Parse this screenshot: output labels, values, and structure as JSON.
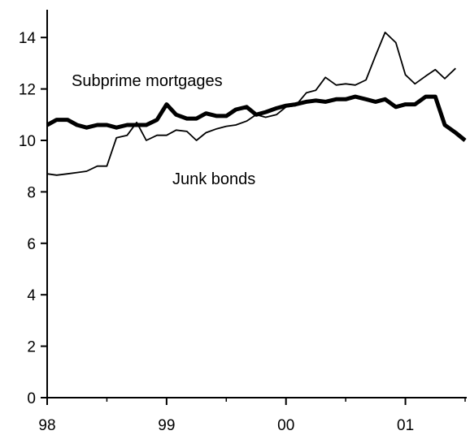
{
  "chart_data": {
    "type": "line",
    "title": "",
    "xlabel": "",
    "ylabel": "",
    "xlim": [
      1998.0,
      2001.5
    ],
    "ylim": [
      0,
      15
    ],
    "x_ticks": [
      {
        "value": 1998,
        "label": "98"
      },
      {
        "value": 1999,
        "label": "99"
      },
      {
        "value": 2000,
        "label": "00"
      },
      {
        "value": 2001,
        "label": "01"
      }
    ],
    "y_ticks": [
      0,
      2,
      4,
      6,
      8,
      10,
      12,
      14
    ],
    "grid": false,
    "legend": "none",
    "annotations": [
      {
        "text": "Subprime mortgages",
        "series": "Subprime mortgages"
      },
      {
        "text": "Junk bonds",
        "series": "Junk bonds"
      }
    ],
    "series": [
      {
        "name": "Subprime mortgages",
        "line_weight": "thick",
        "color": "#000000",
        "points": [
          [
            1998.0,
            10.6
          ],
          [
            1998.08,
            10.8
          ],
          [
            1998.17,
            10.8
          ],
          [
            1998.25,
            10.6
          ],
          [
            1998.33,
            10.5
          ],
          [
            1998.42,
            10.6
          ],
          [
            1998.5,
            10.6
          ],
          [
            1998.58,
            10.5
          ],
          [
            1998.67,
            10.6
          ],
          [
            1998.75,
            10.6
          ],
          [
            1998.83,
            10.6
          ],
          [
            1998.92,
            10.8
          ],
          [
            1999.0,
            11.4
          ],
          [
            1999.08,
            11.0
          ],
          [
            1999.17,
            10.85
          ],
          [
            1999.25,
            10.85
          ],
          [
            1999.33,
            11.05
          ],
          [
            1999.42,
            10.95
          ],
          [
            1999.5,
            10.95
          ],
          [
            1999.58,
            11.2
          ],
          [
            1999.67,
            11.3
          ],
          [
            1999.75,
            11.0
          ],
          [
            1999.83,
            11.1
          ],
          [
            1999.92,
            11.25
          ],
          [
            2000.0,
            11.35
          ],
          [
            2000.08,
            11.4
          ],
          [
            2000.17,
            11.5
          ],
          [
            2000.25,
            11.55
          ],
          [
            2000.33,
            11.5
          ],
          [
            2000.42,
            11.6
          ],
          [
            2000.5,
            11.6
          ],
          [
            2000.58,
            11.7
          ],
          [
            2000.67,
            11.6
          ],
          [
            2000.75,
            11.5
          ],
          [
            2000.83,
            11.6
          ],
          [
            2000.92,
            11.3
          ],
          [
            2001.0,
            11.4
          ],
          [
            2001.08,
            11.4
          ],
          [
            2001.17,
            11.7
          ],
          [
            2001.25,
            11.7
          ],
          [
            2001.33,
            10.6
          ],
          [
            2001.42,
            10.3
          ],
          [
            2001.5,
            10.0
          ]
        ]
      },
      {
        "name": "Junk bonds",
        "line_weight": "thin",
        "color": "#000000",
        "points": [
          [
            1998.0,
            8.7
          ],
          [
            1998.08,
            8.65
          ],
          [
            1998.17,
            8.7
          ],
          [
            1998.25,
            8.75
          ],
          [
            1998.33,
            8.8
          ],
          [
            1998.42,
            9.0
          ],
          [
            1998.5,
            9.0
          ],
          [
            1998.58,
            10.1
          ],
          [
            1998.67,
            10.2
          ],
          [
            1998.75,
            10.7
          ],
          [
            1998.83,
            10.0
          ],
          [
            1998.92,
            10.2
          ],
          [
            1999.0,
            10.2
          ],
          [
            1999.08,
            10.4
          ],
          [
            1999.17,
            10.35
          ],
          [
            1999.25,
            10.0
          ],
          [
            1999.33,
            10.3
          ],
          [
            1999.42,
            10.45
          ],
          [
            1999.5,
            10.55
          ],
          [
            1999.58,
            10.6
          ],
          [
            1999.67,
            10.75
          ],
          [
            1999.75,
            11.0
          ],
          [
            1999.83,
            10.9
          ],
          [
            1999.92,
            11.0
          ],
          [
            2000.0,
            11.3
          ],
          [
            2000.08,
            11.35
          ],
          [
            2000.17,
            11.85
          ],
          [
            2000.25,
            11.95
          ],
          [
            2000.33,
            12.45
          ],
          [
            2000.42,
            12.15
          ],
          [
            2000.5,
            12.2
          ],
          [
            2000.58,
            12.15
          ],
          [
            2000.67,
            12.35
          ],
          [
            2000.75,
            13.3
          ],
          [
            2000.83,
            14.2
          ],
          [
            2000.92,
            13.8
          ],
          [
            2001.0,
            12.55
          ],
          [
            2001.08,
            12.2
          ],
          [
            2001.17,
            12.5
          ],
          [
            2001.25,
            12.75
          ],
          [
            2001.33,
            12.4
          ],
          [
            2001.42,
            12.8
          ]
        ]
      }
    ]
  }
}
